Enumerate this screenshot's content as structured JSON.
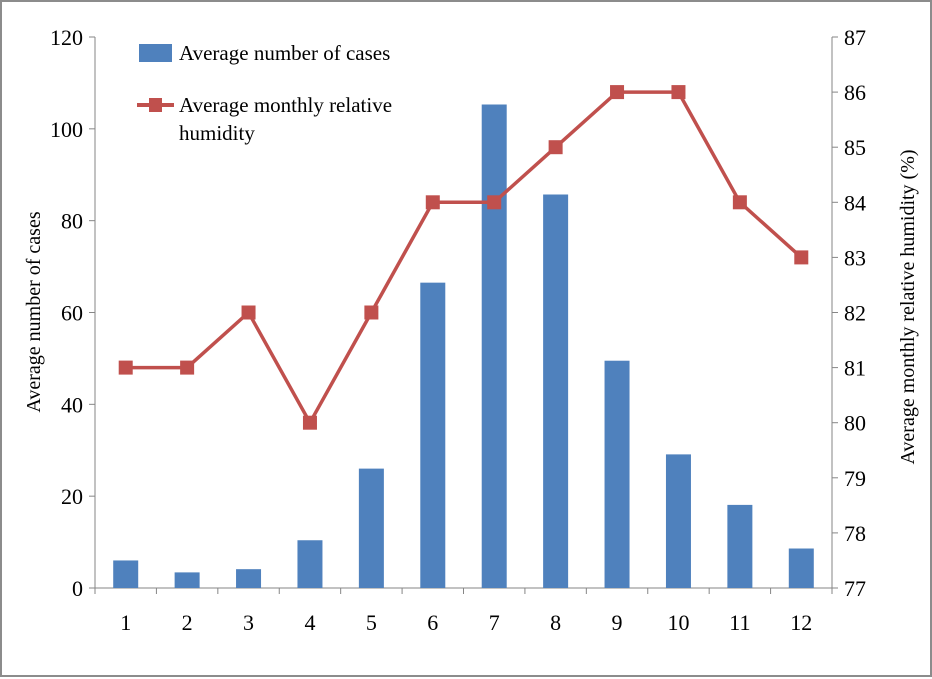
{
  "chart_data": {
    "type": "bar+line",
    "categories": [
      "1",
      "2",
      "3",
      "4",
      "5",
      "6",
      "7",
      "8",
      "9",
      "10",
      "11",
      "12"
    ],
    "series": [
      {
        "name": "Average number of cases",
        "type": "bar",
        "axis": "left",
        "color": "#4f81bd",
        "values": [
          6,
          3.4,
          4.1,
          10.4,
          26,
          66.5,
          105.3,
          85.7,
          49.5,
          29.1,
          18.1,
          8.6
        ]
      },
      {
        "name": "Average monthly relative humidity",
        "type": "line",
        "axis": "right",
        "color": "#c0504d",
        "values": [
          81,
          81,
          82,
          80,
          82,
          84,
          84,
          85,
          86,
          86,
          84,
          83
        ]
      }
    ],
    "ylabel": "Average number of cases",
    "y2label": "Average monthly relative humidity (%)",
    "xlabel": "",
    "ylim": [
      0,
      120
    ],
    "y2lim": [
      77,
      87
    ],
    "yticks": [
      "0",
      "20",
      "40",
      "60",
      "80",
      "100",
      "120"
    ],
    "y2ticks": [
      "77",
      "78",
      "79",
      "80",
      "81",
      "82",
      "83",
      "84",
      "85",
      "86",
      "87"
    ],
    "legend": {
      "placement": "top-left",
      "entries": [
        "Average number of cases",
        "Average monthly relative",
        "humidity"
      ]
    },
    "grid": false
  }
}
